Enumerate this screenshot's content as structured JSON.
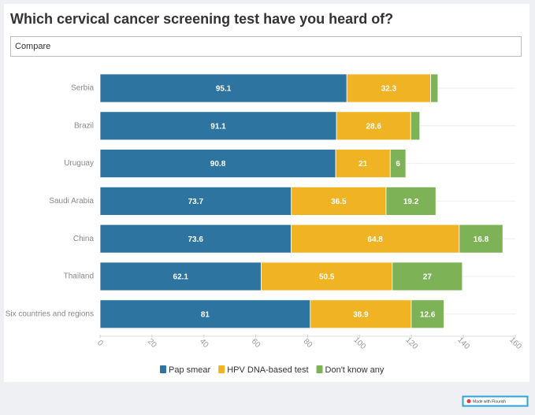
{
  "chart_data": {
    "type": "stacked-bar-horizontal",
    "title": "Which cervical cancer screening test have you heard of?",
    "control": "Compare",
    "categories": [
      "Serbia",
      "Brazil",
      "Uruguay",
      "Saudi Arabia",
      "China",
      "Thailand",
      "Six countries and regions"
    ],
    "series": [
      {
        "name": "Pap smear",
        "color": "#2e74a0",
        "values": [
          95.1,
          91.1,
          90.8,
          73.7,
          73.6,
          62.1,
          81
        ]
      },
      {
        "name": "HPV DNA-based test",
        "color": "#f0b323",
        "values": [
          32.3,
          28.6,
          21,
          36.5,
          64.8,
          50.5,
          38.9
        ]
      },
      {
        "name": "Don't know any",
        "color": "#7db356",
        "values": [
          2.8,
          3.5,
          6,
          19.2,
          16.8,
          27,
          12.6
        ]
      }
    ],
    "xlim": [
      0,
      160
    ],
    "xticks": [
      0,
      20,
      40,
      60,
      80,
      100,
      120,
      140,
      160
    ],
    "badge": "Made with Flourish"
  }
}
